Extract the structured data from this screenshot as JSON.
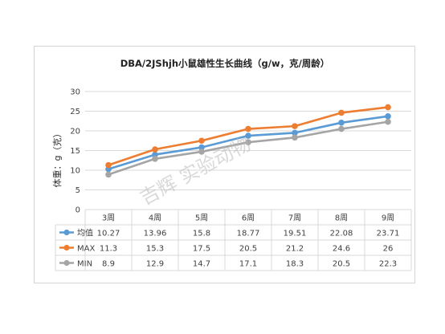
{
  "chart_data": {
    "type": "line",
    "title": "DBA/2JShjh小鼠雄性生长曲线（g/w，克/周龄）",
    "ylabel": "体重：g（克）",
    "xlabel": "",
    "categories": [
      "3周",
      "4周",
      "5周",
      "6周",
      "7周",
      "8周",
      "9周"
    ],
    "ylim": [
      0,
      30
    ],
    "yticks": [
      0,
      5,
      10,
      15,
      20,
      25,
      30
    ],
    "grid": true,
    "legend": "data-table",
    "series": [
      {
        "name": "均值",
        "color": "#5b9bd5",
        "values": [
          10.27,
          13.96,
          15.8,
          18.77,
          19.51,
          22.08,
          23.71
        ],
        "labels": [
          "10.27",
          "13.96",
          "15.8",
          "18.77",
          "19.51",
          "22.08",
          "23.71"
        ]
      },
      {
        "name": "MAX",
        "color": "#ed7d31",
        "values": [
          11.3,
          15.3,
          17.5,
          20.5,
          21.2,
          24.6,
          26
        ],
        "labels": [
          "11.3",
          "15.3",
          "17.5",
          "20.5",
          "21.2",
          "24.6",
          "26"
        ]
      },
      {
        "name": "MIN",
        "color": "#a5a5a5",
        "values": [
          8.9,
          12.9,
          14.7,
          17.1,
          18.3,
          20.5,
          22.3
        ],
        "labels": [
          "8.9",
          "12.9",
          "14.7",
          "17.1",
          "18.3",
          "20.5",
          "22.3"
        ]
      }
    ]
  },
  "watermark": {
    "text": "吉辉 实验动物"
  }
}
